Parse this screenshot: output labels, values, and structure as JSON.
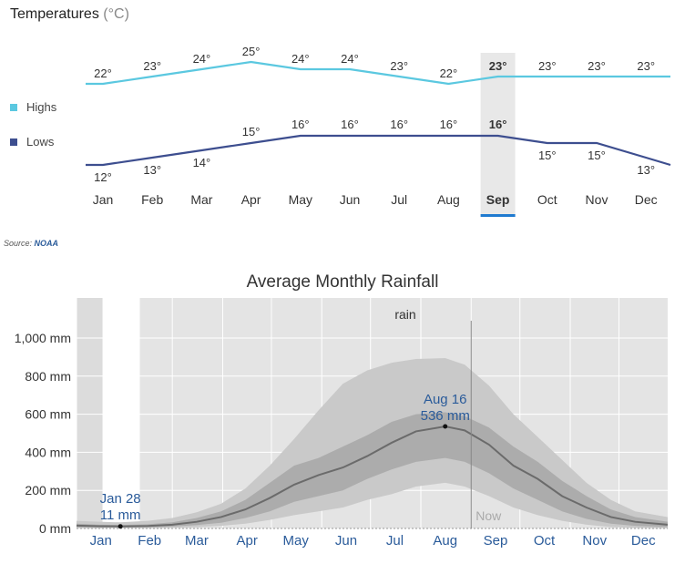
{
  "temperature_panel": {
    "title": "Temperatures",
    "unit": "(°C)",
    "legend": [
      {
        "label": "Highs",
        "color": "#5bc8e0"
      },
      {
        "label": "Lows",
        "color": "#3d4e8f"
      }
    ],
    "highlight_month": "Sep",
    "source_prefix": "Source:",
    "source_name": "NOAA"
  },
  "rainfall_panel": {
    "title": "Average Monthly Rainfall",
    "band_label": "rain",
    "now_label": "Now",
    "min_annotation": {
      "date": "Jan 28",
      "value": "11 mm"
    },
    "max_annotation": {
      "date": "Aug 16",
      "value": "536 mm"
    }
  },
  "chart_data": [
    {
      "type": "line",
      "title": "Temperatures",
      "categories": [
        "Jan",
        "Feb",
        "Mar",
        "Apr",
        "May",
        "Jun",
        "Jul",
        "Aug",
        "Sep",
        "Oct",
        "Nov",
        "Dec"
      ],
      "series": [
        {
          "name": "Highs",
          "color": "#5bc8e0",
          "values": [
            22,
            23,
            24,
            25,
            24,
            24,
            23,
            22,
            23,
            23,
            23,
            23
          ]
        },
        {
          "name": "Lows",
          "color": "#3d4e8f",
          "values": [
            12,
            13,
            14,
            15,
            16,
            16,
            16,
            16,
            16,
            15,
            15,
            13
          ]
        }
      ],
      "value_suffix": "°",
      "highlighted_category": "Sep",
      "grid": false,
      "legend_position": "left"
    },
    {
      "type": "area",
      "title": "Average Monthly Rainfall",
      "x_ticks": [
        "Jan",
        "Feb",
        "Mar",
        "Apr",
        "May",
        "Jun",
        "Jul",
        "Aug",
        "Sep",
        "Oct",
        "Nov",
        "Dec"
      ],
      "y_ticks": [
        "0 mm",
        "200 mm",
        "400 mm",
        "600 mm",
        "800 mm",
        "1,000 mm"
      ],
      "ylim": [
        0,
        1000
      ],
      "grid": true,
      "now_marker": "Sep",
      "doy": [
        1,
        15,
        28,
        45,
        60,
        75,
        90,
        105,
        120,
        135,
        150,
        165,
        180,
        195,
        210,
        228,
        240,
        255,
        270,
        285,
        300,
        315,
        330,
        345,
        365
      ],
      "median": [
        15,
        12,
        11,
        13,
        20,
        35,
        60,
        100,
        160,
        230,
        280,
        320,
        380,
        450,
        510,
        536,
        515,
        440,
        330,
        260,
        170,
        110,
        60,
        35,
        20
      ],
      "p25": [
        8,
        6,
        5,
        7,
        10,
        18,
        30,
        55,
        90,
        140,
        170,
        200,
        260,
        310,
        350,
        370,
        350,
        290,
        210,
        150,
        90,
        50,
        25,
        14,
        8
      ],
      "p75": [
        25,
        20,
        18,
        22,
        32,
        55,
        90,
        150,
        240,
        330,
        370,
        430,
        490,
        560,
        600,
        610,
        590,
        530,
        430,
        350,
        250,
        170,
        100,
        60,
        35
      ],
      "p10": [
        2,
        2,
        2,
        2,
        4,
        8,
        14,
        25,
        45,
        70,
        90,
        110,
        150,
        180,
        220,
        240,
        220,
        170,
        110,
        70,
        40,
        20,
        8,
        4,
        2
      ],
      "p90": [
        40,
        35,
        32,
        40,
        55,
        85,
        130,
        210,
        330,
        470,
        620,
        760,
        830,
        870,
        890,
        895,
        860,
        750,
        600,
        480,
        360,
        240,
        150,
        90,
        60
      ]
    }
  ]
}
